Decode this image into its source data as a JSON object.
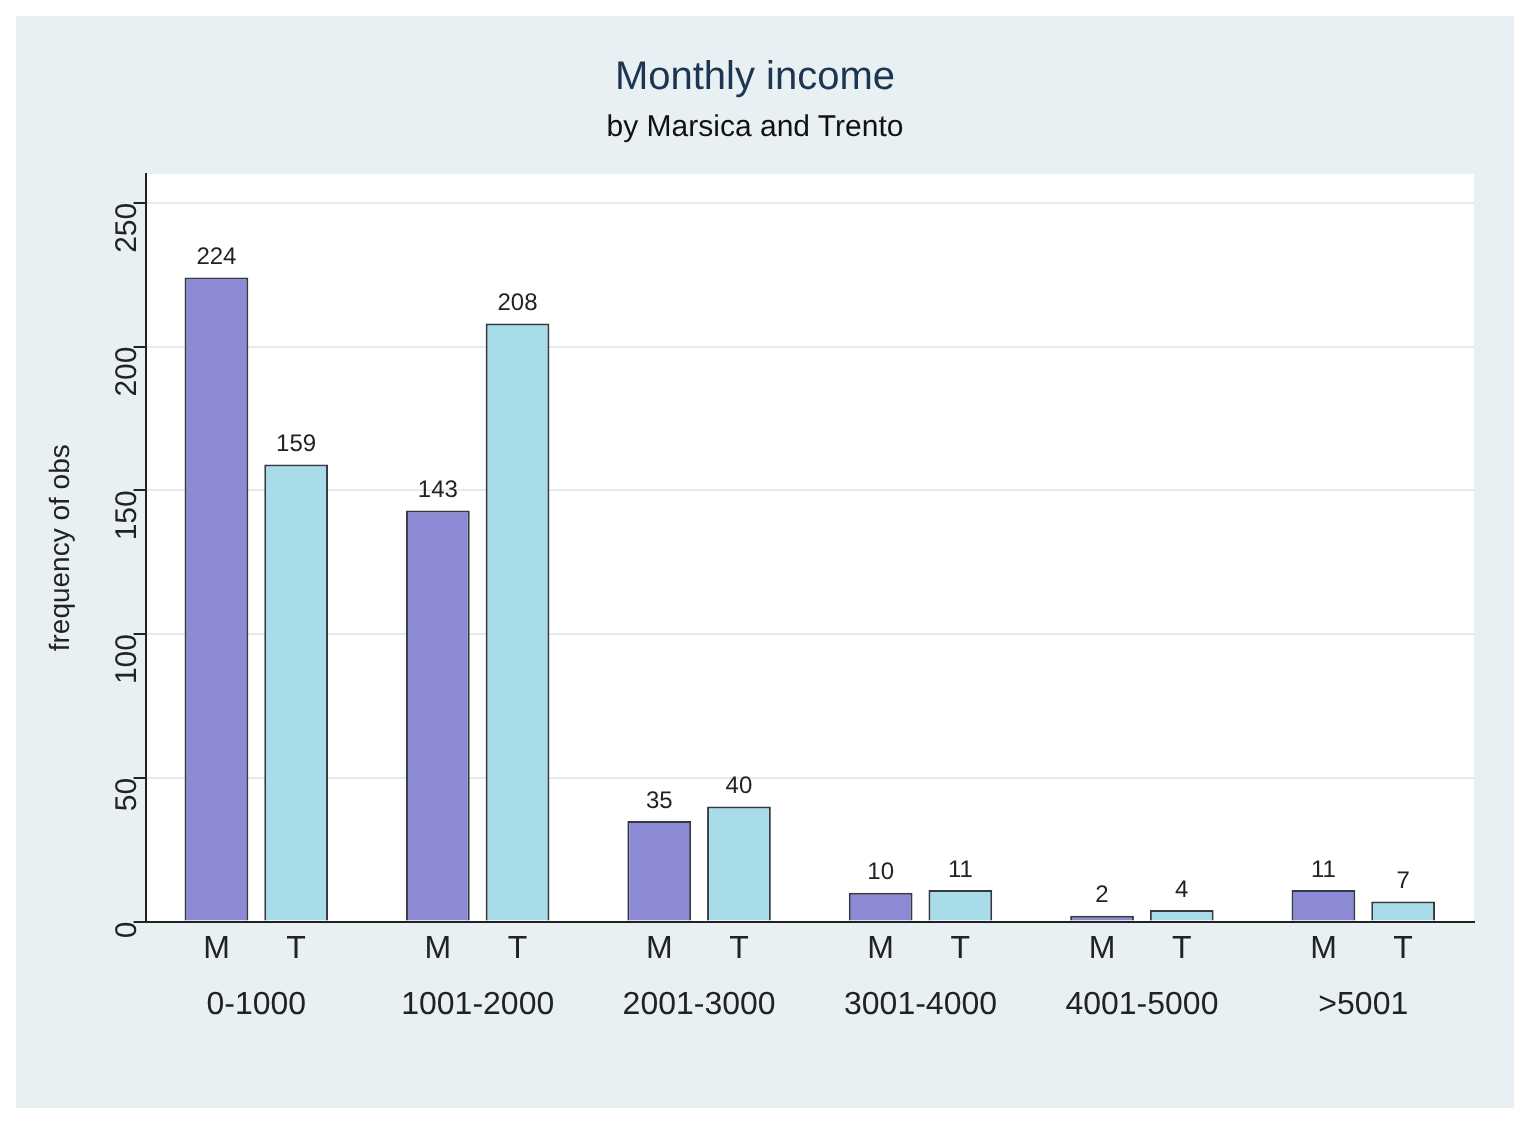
{
  "chart_data": {
    "type": "bar",
    "title": "Monthly income",
    "subtitle": "by Marsica and Trento",
    "ylabel": "frequency of obs",
    "categories": [
      "0-1000",
      "1001-2000",
      "2001-3000",
      "3001-4000",
      "4001-5000",
      ">5001"
    ],
    "series": [
      {
        "name": "M",
        "color": "#8c8ad4",
        "values": [
          224,
          143,
          35,
          10,
          2,
          11
        ]
      },
      {
        "name": "T",
        "color": "#a8dce8",
        "values": [
          159,
          208,
          40,
          11,
          4,
          7
        ]
      }
    ],
    "ylim": [
      0,
      260
    ],
    "yticks": [
      0,
      50,
      100,
      150,
      200,
      250
    ],
    "grid": "y",
    "legend": false,
    "data_labels": true
  }
}
